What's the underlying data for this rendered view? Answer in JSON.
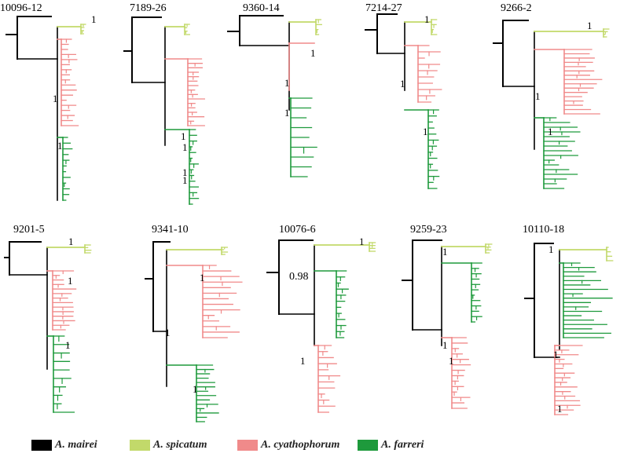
{
  "colors": {
    "mairei": "#000000",
    "spicatum": "#c2d96a",
    "cyathophorum": "#f08a8a",
    "farreri": "#1e9a3c"
  },
  "panels": [
    {
      "title": "10096-12",
      "supports": [
        "1",
        "1",
        "1"
      ]
    },
    {
      "title": "7189-26",
      "supports": [
        "1",
        "1",
        "1",
        "1"
      ]
    },
    {
      "title": "9360-14",
      "supports": [
        "1",
        "1",
        "1"
      ]
    },
    {
      "title": "7214-27",
      "supports": [
        "1",
        "1",
        "1"
      ]
    },
    {
      "title": "9266-2",
      "supports": [
        "1",
        "1",
        "1"
      ]
    },
    {
      "title": "9201-5",
      "supports": [
        "1",
        "1",
        "1"
      ]
    },
    {
      "title": "9341-10",
      "supports": [
        "1",
        "1",
        "1"
      ]
    },
    {
      "title": "10076-6",
      "supports": [
        "1",
        "0.98",
        "1"
      ]
    },
    {
      "title": "9259-23",
      "supports": [
        "1",
        "1",
        "1"
      ]
    },
    {
      "title": "10110-18",
      "supports": [
        "1",
        "1",
        "1"
      ]
    }
  ],
  "legend": [
    {
      "species": "mairei",
      "label": "A. mairei"
    },
    {
      "species": "spicatum",
      "label": "A. spicatum"
    },
    {
      "species": "cyathophorum",
      "label": "A. cyathophorum"
    },
    {
      "species": "farreri",
      "label": "A. farreri"
    }
  ]
}
